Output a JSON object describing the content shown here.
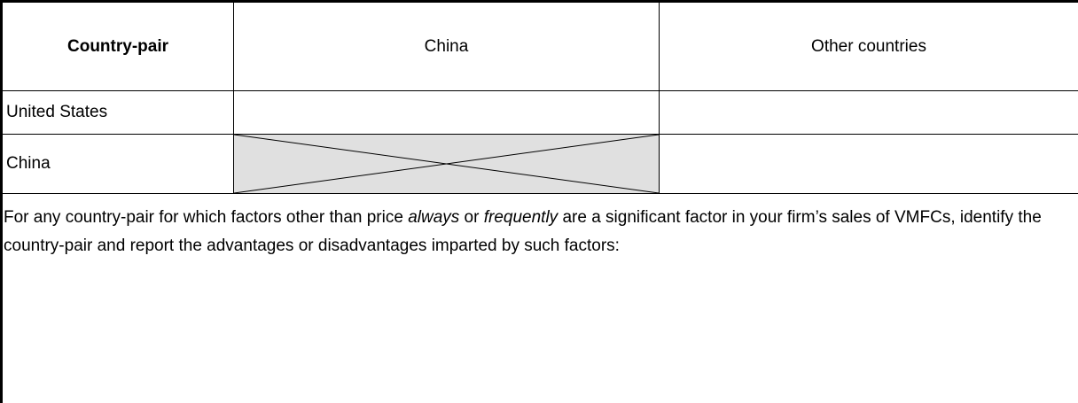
{
  "table": {
    "header": [
      "Country-pair",
      "China",
      "Other countries"
    ],
    "rows": [
      "United States",
      "China"
    ]
  },
  "note": [
    "For any country-pair for which factors other than price ",
    "always",
    " or ",
    "frequently",
    " are a significant factor in your firm’s sales of VMFCs, identify the country-pair and report the advantages or disadvantages imparted by such factors:"
  ]
}
